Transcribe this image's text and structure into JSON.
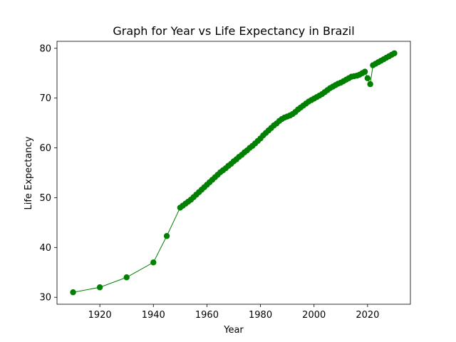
{
  "chart_data": {
    "type": "line",
    "title": "Graph for Year vs Life Expectancy in Brazil",
    "xlabel": "Year",
    "ylabel": "Life Expectancy",
    "xlim": [
      1904,
      2036
    ],
    "ylim": [
      28.6,
      81.4
    ],
    "xticks": [
      1920,
      1940,
      1960,
      1980,
      2000,
      2020
    ],
    "yticks": [
      30,
      40,
      50,
      60,
      70,
      80
    ],
    "grid": false,
    "marker": "circle",
    "color": "#008000",
    "series": [
      {
        "x": [
          1910,
          1920,
          1930,
          1940,
          1945,
          1950,
          1951,
          1952,
          1953,
          1954,
          1955,
          1956,
          1957,
          1958,
          1959,
          1960,
          1961,
          1962,
          1963,
          1964,
          1965,
          1966,
          1967,
          1968,
          1969,
          1970,
          1971,
          1972,
          1973,
          1974,
          1975,
          1976,
          1977,
          1978,
          1979,
          1980,
          1981,
          1982,
          1983,
          1984,
          1985,
          1986,
          1987,
          1988,
          1989,
          1990,
          1991,
          1992,
          1993,
          1994,
          1995,
          1996,
          1997,
          1998,
          1999,
          2000,
          2001,
          2002,
          2003,
          2004,
          2005,
          2006,
          2007,
          2008,
          2009,
          2010,
          2011,
          2012,
          2013,
          2014,
          2015,
          2016,
          2017,
          2018,
          2019,
          2020,
          2021,
          2022,
          2023,
          2024,
          2025,
          2026,
          2027,
          2028,
          2029,
          2030
        ],
        "values": [
          31.0,
          32.0,
          34.0,
          37.0,
          42.3,
          48.0,
          48.4,
          48.8,
          49.2,
          49.6,
          50.1,
          50.6,
          51.1,
          51.6,
          52.1,
          52.6,
          53.1,
          53.6,
          54.1,
          54.6,
          55.1,
          55.5,
          55.9,
          56.4,
          56.8,
          57.3,
          57.7,
          58.2,
          58.6,
          59.1,
          59.5,
          60.0,
          60.4,
          60.9,
          61.4,
          61.9,
          62.5,
          63.0,
          63.5,
          64.0,
          64.5,
          64.9,
          65.4,
          65.8,
          66.1,
          66.3,
          66.5,
          66.8,
          67.2,
          67.7,
          68.1,
          68.5,
          68.9,
          69.3,
          69.6,
          69.9,
          70.2,
          70.5,
          70.8,
          71.2,
          71.6,
          72.0,
          72.3,
          72.6,
          72.9,
          73.1,
          73.4,
          73.7,
          74.0,
          74.3,
          74.4,
          74.5,
          74.7,
          75.0,
          75.3,
          74.0,
          72.8,
          76.6,
          76.9,
          77.2,
          77.5,
          77.8,
          78.1,
          78.4,
          78.7,
          79.0
        ]
      }
    ]
  }
}
